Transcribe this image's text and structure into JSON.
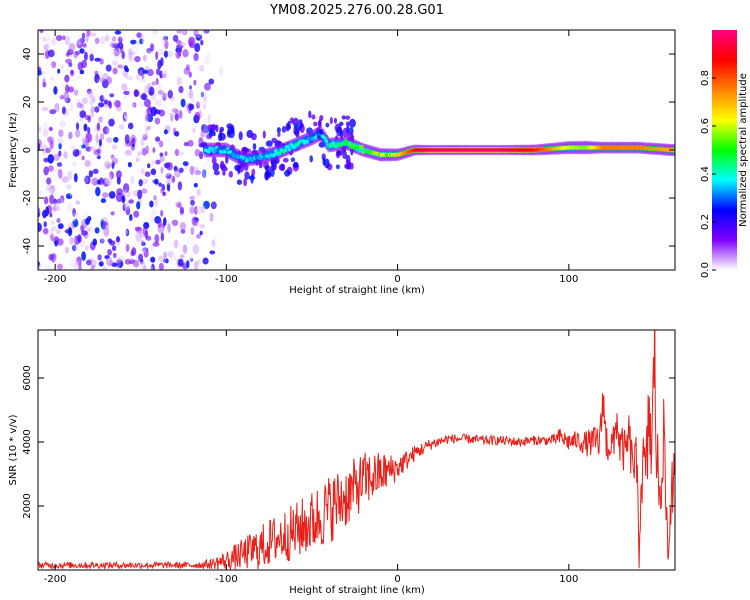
{
  "title": "YM08.2025.276.00.28.G01",
  "chart_data": [
    {
      "type": "heatmap",
      "title": "YM08.2025.276.00.28.G01",
      "xlabel": "Height of straight line (km)",
      "ylabel": "Frequency (Hz)",
      "xlim": [
        -210,
        162
      ],
      "ylim": [
        -50,
        50
      ],
      "xticks": [
        -200,
        -100,
        0,
        100
      ],
      "yticks": [
        -40,
        -20,
        0,
        20,
        40
      ],
      "xtick_labels": [
        "-200",
        "-100",
        "0",
        "100"
      ],
      "ytick_labels": [
        "-40",
        "-20",
        "0",
        "20",
        "40"
      ],
      "colorbar": {
        "label": "Normalized spectral amplitude",
        "range": [
          0,
          1
        ],
        "ticks": [
          0,
          0.2,
          0.4,
          0.6,
          0.8
        ],
        "tick_labels": [
          "0.0",
          "0.2",
          "0.4",
          "0.6",
          "0.8"
        ],
        "colors": [
          "#ffffff",
          "#8000ff",
          "#0000ff",
          "#00ffff",
          "#00ff00",
          "#ffff00",
          "#ff8000",
          "#ff0000",
          "#ff0080"
        ]
      },
      "ridge": {
        "x": [
          -110,
          -100,
          -90,
          -80,
          -70,
          -60,
          -50,
          -45,
          -40,
          -30,
          -20,
          -10,
          0,
          10,
          20,
          40,
          60,
          80,
          100,
          110,
          120,
          140,
          160
        ],
        "freq_hz": [
          0,
          0,
          -4,
          -3,
          -1,
          2,
          5,
          7,
          2,
          3,
          0,
          -2,
          -2,
          0,
          0,
          0,
          0,
          0,
          1,
          1,
          1,
          1,
          0
        ],
        "amplitude": [
          0.35,
          0.35,
          0.35,
          0.35,
          0.4,
          0.4,
          0.35,
          0.3,
          0.4,
          0.45,
          0.5,
          0.55,
          0.65,
          0.85,
          0.95,
          0.95,
          0.95,
          0.85,
          0.6,
          0.55,
          0.75,
          0.75,
          0.7
        ]
      },
      "noise_region_x": [
        -210,
        -110
      ]
    },
    {
      "type": "line",
      "xlabel": "Height of straight line (km)",
      "ylabel": "SNR (10 * v/v)",
      "xlim": [
        -210,
        162
      ],
      "ylim": [
        0,
        7500
      ],
      "xticks": [
        -200,
        -100,
        0,
        100
      ],
      "yticks": [
        2000,
        4000,
        6000
      ],
      "xtick_labels": [
        "-200",
        "-100",
        "0",
        "100"
      ],
      "ytick_labels": [
        "2000",
        "4000",
        "6000"
      ],
      "series": [
        {
          "name": "SNR",
          "color": "#e8201a",
          "x": [
            -210,
            -200,
            -180,
            -160,
            -140,
            -120,
            -110,
            -100,
            -90,
            -80,
            -70,
            -60,
            -50,
            -40,
            -30,
            -20,
            -10,
            0,
            10,
            20,
            30,
            40,
            50,
            60,
            70,
            80,
            90,
            95,
            100,
            105,
            110,
            115,
            120,
            125,
            130,
            135,
            140,
            145,
            150,
            155,
            160,
            162
          ],
          "values": [
            150,
            150,
            150,
            150,
            150,
            150,
            180,
            300,
            500,
            700,
            1000,
            1200,
            1500,
            1900,
            2300,
            2800,
            3000,
            3200,
            3650,
            3950,
            4100,
            4100,
            4050,
            4050,
            4000,
            4050,
            4050,
            4150,
            4000,
            4050,
            3950,
            4000,
            4050,
            3900,
            3900,
            3500,
            3300,
            3000,
            2800,
            2600,
            2500,
            2500
          ],
          "noise": [
            100,
            100,
            100,
            100,
            100,
            100,
            150,
            300,
            500,
            700,
            800,
            900,
            1000,
            1100,
            1000,
            900,
            700,
            400,
            250,
            180,
            150,
            150,
            150,
            150,
            150,
            150,
            150,
            300,
            300,
            300,
            400,
            500,
            800,
            600,
            700,
            700,
            900,
            1400,
            2000,
            1500,
            1200,
            1200
          ]
        }
      ],
      "spikes": [
        {
          "x": 120,
          "value": 5600
        },
        {
          "x": 128,
          "value": 4800
        },
        {
          "x": 135,
          "value": 4300
        },
        {
          "x": 141,
          "value": 900
        },
        {
          "x": 147,
          "value": 5200
        },
        {
          "x": 150,
          "value": 7400
        },
        {
          "x": 155,
          "value": 4300
        },
        {
          "x": 158,
          "value": 350
        }
      ]
    }
  ]
}
